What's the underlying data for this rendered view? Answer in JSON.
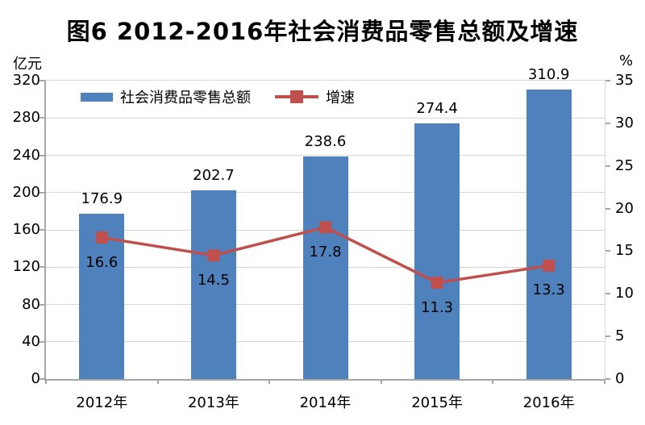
{
  "title": "图6  2012-2016年社会消费品零售总额及增速",
  "chart_data": {
    "type": "bar+line",
    "title": "图6  2012-2016年社会消费品零售总额及增速",
    "categories": [
      "2012年",
      "2013年",
      "2014年",
      "2015年",
      "2016年"
    ],
    "series": [
      {
        "name": "社会消费品零售总额",
        "type": "bar",
        "axis": "left",
        "color": "#4F81BD",
        "values": [
          176.9,
          202.7,
          238.6,
          274.4,
          310.9
        ]
      },
      {
        "name": "增速",
        "type": "line",
        "axis": "right",
        "color": "#C0504D",
        "marker": "square",
        "values": [
          16.6,
          14.5,
          17.8,
          11.3,
          13.3
        ]
      }
    ],
    "left_axis": {
      "unit_label": "亿元",
      "min": 0,
      "max": 320,
      "step": 40,
      "ticks": [
        "0",
        "40",
        "80",
        "120",
        "160",
        "200",
        "240",
        "280",
        "320"
      ]
    },
    "right_axis": {
      "unit_label": "%",
      "min": 0,
      "max": 35,
      "step": 5,
      "ticks": [
        "0",
        "5",
        "10",
        "15",
        "20",
        "25",
        "30",
        "35"
      ]
    },
    "grid": true,
    "legend_position": "top-inside",
    "colors": {
      "grid": "#d6d6d6",
      "axis": "#a6a6a6",
      "text": "#000000",
      "background": "#ffffff"
    }
  }
}
